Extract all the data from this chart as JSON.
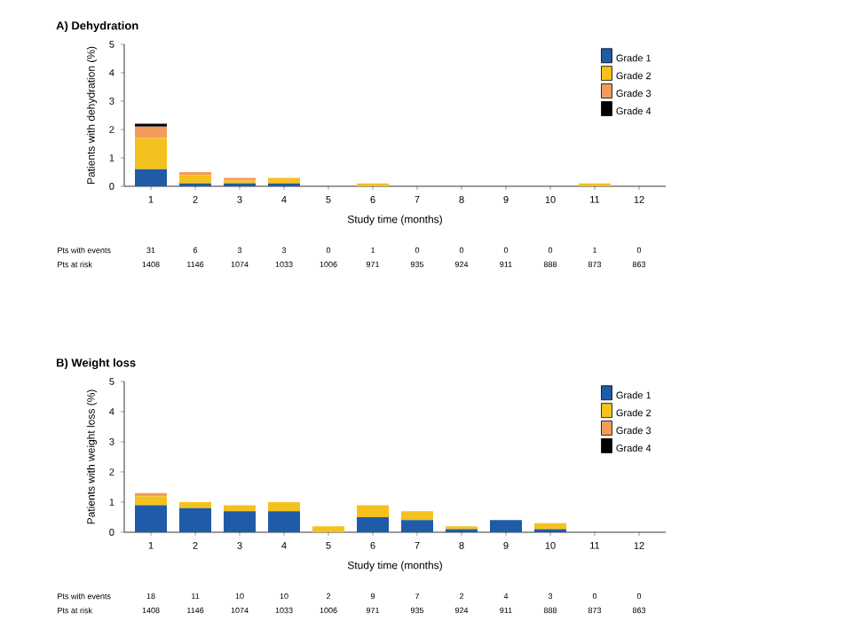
{
  "chart_data": [
    {
      "type": "bar",
      "title": "A) Dehydration",
      "xlabel": "Study time (months)",
      "ylabel": "Patients with dehydration (%)",
      "categories": [
        "1",
        "2",
        "3",
        "4",
        "5",
        "6",
        "7",
        "8",
        "9",
        "10",
        "11",
        "12"
      ],
      "stacked": true,
      "ylim": [
        0,
        5
      ],
      "yticks": [
        0,
        1,
        2,
        3,
        4,
        5
      ],
      "legend": "top right",
      "series": [
        {
          "name": "Grade 1",
          "color": "#1f5ba6",
          "values": [
            0.6,
            0.1,
            0.1,
            0.1,
            0,
            0,
            0,
            0,
            0,
            0,
            0,
            0
          ]
        },
        {
          "name": "Grade 2",
          "color": "#f5c11e",
          "values": [
            1.1,
            0.3,
            0.1,
            0.2,
            0,
            0.1,
            0,
            0,
            0,
            0,
            0.1,
            0
          ]
        },
        {
          "name": "Grade 3",
          "color": "#f39c5a",
          "values": [
            0.4,
            0.1,
            0.1,
            0,
            0,
            0,
            0,
            0,
            0,
            0,
            0,
            0
          ]
        },
        {
          "name": "Grade 4",
          "color": "#000000",
          "values": [
            0.1,
            0,
            0,
            0,
            0,
            0,
            0,
            0,
            0,
            0,
            0,
            0
          ]
        }
      ],
      "annotations": [
        "Pts with events",
        "31",
        "6",
        "3",
        "3",
        "0",
        "1",
        "0",
        "0",
        "0",
        "0",
        "1",
        "0",
        "Pts at risk",
        "1408",
        "1146",
        "1074",
        "1033",
        "1006",
        "971",
        "935",
        "924",
        "911",
        "888",
        "873",
        "863"
      ]
    },
    {
      "type": "bar",
      "title": "B) Weight loss",
      "xlabel": "Study time (months)",
      "ylabel": "Patients with weight loss (%)",
      "categories": [
        "1",
        "2",
        "3",
        "4",
        "5",
        "6",
        "7",
        "8",
        "9",
        "10",
        "11",
        "12"
      ],
      "stacked": true,
      "ylim": [
        0,
        5
      ],
      "yticks": [
        0,
        1,
        2,
        3,
        4,
        5
      ],
      "legend": "top right",
      "series": [
        {
          "name": "Grade 1",
          "color": "#1f5ba6",
          "values": [
            0.9,
            0.8,
            0.7,
            0.7,
            0,
            0.5,
            0.4,
            0.1,
            0.4,
            0.1,
            0,
            0
          ]
        },
        {
          "name": "Grade 2",
          "color": "#f5c11e",
          "values": [
            0.3,
            0.2,
            0.2,
            0.3,
            0.2,
            0.4,
            0.3,
            0.1,
            0,
            0.2,
            0,
            0
          ]
        },
        {
          "name": "Grade 3",
          "color": "#f39c5a",
          "values": [
            0.1,
            0,
            0,
            0,
            0,
            0,
            0,
            0,
            0,
            0,
            0,
            0
          ]
        },
        {
          "name": "Grade 4",
          "color": "#000000",
          "values": [
            0,
            0,
            0,
            0,
            0,
            0,
            0,
            0,
            0,
            0,
            0,
            0
          ]
        }
      ],
      "annotations": [
        "Pts with events",
        "18",
        "11",
        "10",
        "10",
        "2",
        "9",
        "7",
        "2",
        "4",
        "3",
        "0",
        "0",
        "Pts at risk",
        "1408",
        "1146",
        "1074",
        "1033",
        "1006",
        "971",
        "935",
        "924",
        "911",
        "888",
        "873",
        "863"
      ]
    }
  ]
}
